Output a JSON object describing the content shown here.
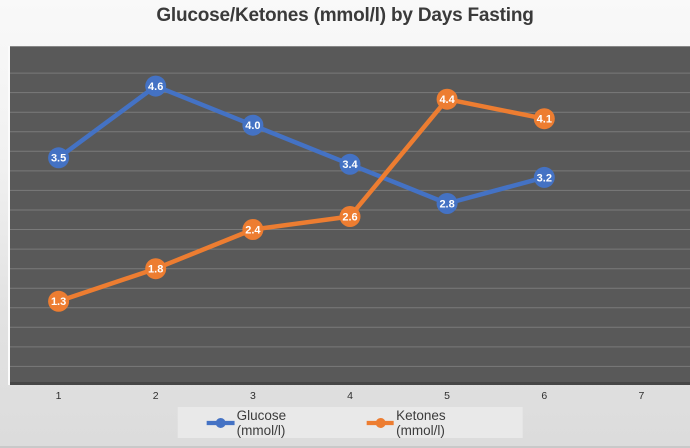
{
  "title": "Glucose/Ketones (mmol/l) by Days Fasting",
  "chart_data": {
    "type": "line",
    "title": "Glucose/Ketones (mmol/l) by Days Fasting",
    "categories": [
      "1",
      "2",
      "3",
      "4",
      "5",
      "6",
      "7"
    ],
    "series": [
      {
        "name": "Glucose (mmol/l)",
        "color": "#4472C4",
        "values": [
          3.5,
          4.6,
          4.0,
          3.4,
          2.8,
          3.2
        ],
        "labels": [
          "3.5",
          "4.6",
          "4.0",
          "3.4",
          "2.8",
          "3.2"
        ]
      },
      {
        "name": "Ketones (mmol/l)",
        "color": "#ED7D31",
        "values": [
          1.3,
          1.8,
          2.4,
          2.6,
          4.4,
          4.1
        ],
        "labels": [
          "1.3",
          "1.8",
          "2.4",
          "2.6",
          "4.4",
          "4.1"
        ]
      }
    ],
    "xlabel": "",
    "ylabel": "",
    "ylim": [
      0,
      5.2
    ],
    "grid": true,
    "grid_step": 0.3,
    "grid_color": "rgba(255,255,255,0.20)",
    "plot_bg": "#595959",
    "legend_position": "bottom",
    "data_label_color": "#ffffff"
  }
}
